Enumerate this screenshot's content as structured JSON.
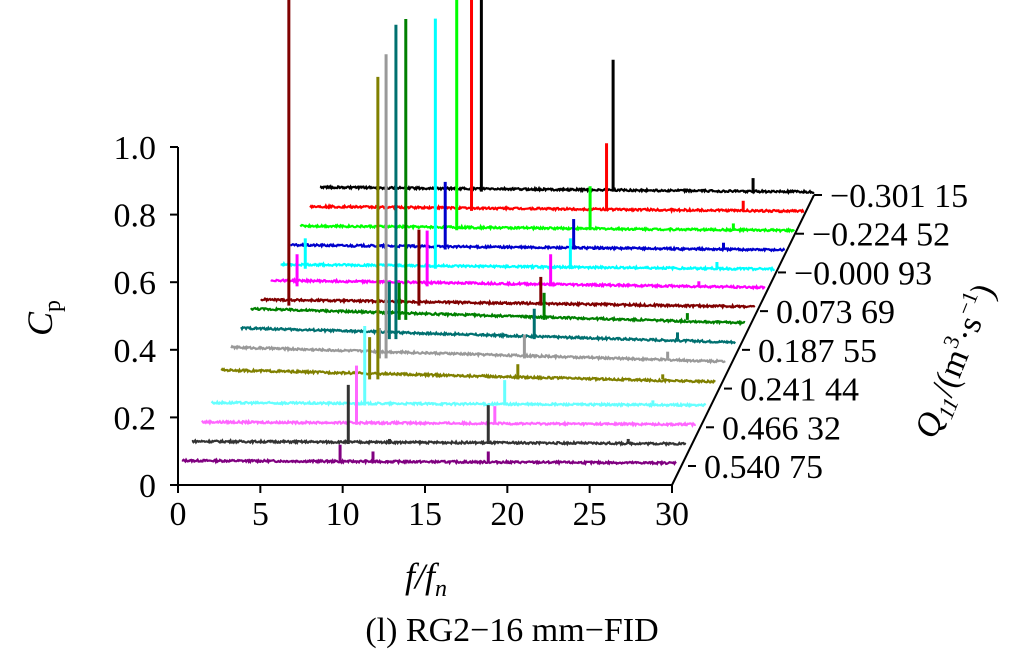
{
  "caption": "(l) RG2−16 mm−FID",
  "chart_data": {
    "type": "waterfall",
    "xlabel": "f/f",
    "xlabel_sub": "n",
    "ylabel": "C",
    "ylabel_sub": "p",
    "zlabel": "Q",
    "zlabel_sub": "11",
    "zlabel_unit": "/(m",
    "zlabel_unit_sup": "3",
    "zlabel_unit_tail": "·s",
    "zlabel_unit_tail_sup": "−1",
    "zlabel_close": ")",
    "xlim": [
      0,
      30
    ],
    "ylim": [
      0,
      1.0
    ],
    "x_ticks": [
      "0",
      "5",
      "10",
      "15",
      "20",
      "25",
      "30"
    ],
    "y_ticks": [
      "0",
      "0.2",
      "0.4",
      "0.6",
      "0.8",
      "1.0"
    ],
    "z_ticks": [
      "0.540 75",
      "0.466 32",
      "0.241 44",
      "0.187 55",
      "0.073 69",
      "−0.000 93",
      "−0.224 52",
      "−0.301 15"
    ],
    "series": [
      {
        "color": "#800080",
        "base": 0.01,
        "peaks": [
          [
            9.6,
            0.06
          ],
          [
            11.6,
            0.04
          ],
          [
            18.6,
            0.04
          ]
        ]
      },
      {
        "color": "#333333",
        "base": 0.01,
        "peaks": [
          [
            9.5,
            0.18
          ],
          [
            12.0,
            0.02
          ],
          [
            18.0,
            0.12
          ],
          [
            26.5,
            0.02
          ]
        ]
      },
      {
        "color": "#ff66ff",
        "base": 0.01,
        "peaks": [
          [
            9.4,
            0.18
          ],
          [
            17.8,
            0.06
          ],
          [
            27.0,
            0.01
          ]
        ]
      },
      {
        "color": "#66ffff",
        "base": 0.01,
        "peaks": [
          [
            9.3,
            0.24
          ],
          [
            17.8,
            0.08
          ],
          [
            26.8,
            0.02
          ]
        ]
      },
      {
        "color": "#808000",
        "base": 0.05,
        "peaks": [
          [
            9.5,
            0.92
          ],
          [
            9.0,
            0.15
          ],
          [
            18.0,
            0.07
          ],
          [
            26.8,
            0.04
          ]
        ]
      },
      {
        "color": "#999999",
        "base": 0.06,
        "peaks": [
          [
            9.4,
            0.93
          ],
          [
            9.0,
            0.12
          ],
          [
            17.8,
            0.1
          ],
          [
            26.5,
            0.05
          ]
        ]
      },
      {
        "color": "#007070",
        "base": 0.06,
        "peaks": [
          [
            9.4,
            0.96
          ],
          [
            9.0,
            0.2
          ],
          [
            17.8,
            0.12
          ],
          [
            26.5,
            0.05
          ]
        ]
      },
      {
        "color": "#008000",
        "base": 0.06,
        "peaks": [
          [
            9.4,
            0.92
          ],
          [
            9.0,
            0.14
          ],
          [
            17.8,
            0.11
          ],
          [
            26.5,
            0.05
          ]
        ]
      },
      {
        "color": "#800000",
        "base": 0.03,
        "peaks": [
          [
            1.7,
            1.31
          ],
          [
            9.6,
            0.24
          ],
          [
            17.0,
            0.1
          ]
        ]
      },
      {
        "color": "#ff00ff",
        "base": 0.03,
        "peaks": [
          [
            1.6,
            0.11
          ],
          [
            9.5,
            0.18
          ],
          [
            17.0,
            0.11
          ],
          [
            26.0,
            0.03
          ]
        ]
      },
      {
        "color": "#00ffff",
        "base": 0.02,
        "peaks": [
          [
            1.5,
            0.1
          ],
          [
            9.4,
            0.75
          ],
          [
            17.6,
            0.1
          ],
          [
            26.5,
            0.03
          ]
        ]
      },
      {
        "color": "#0000cc",
        "base": 0.02,
        "peaks": [
          [
            9.4,
            0.21
          ],
          [
            17.2,
            0.1
          ],
          [
            26.3,
            0.03
          ]
        ]
      },
      {
        "color": "#00ff00",
        "base": 0.02,
        "peaks": [
          [
            9.5,
            0.8
          ],
          [
            17.6,
            0.14
          ],
          [
            26.3,
            0.03
          ]
        ]
      },
      {
        "color": "#ff0000",
        "base": 0.02,
        "peaks": [
          [
            9.8,
            1.06
          ],
          [
            18.0,
            0.21
          ],
          [
            26.3,
            0.04
          ]
        ]
      },
      {
        "color": "#000000",
        "base": 0.02,
        "peaks": [
          [
            9.8,
            1.03
          ],
          [
            17.8,
            0.4
          ],
          [
            26.3,
            0.05
          ]
        ]
      }
    ]
  }
}
